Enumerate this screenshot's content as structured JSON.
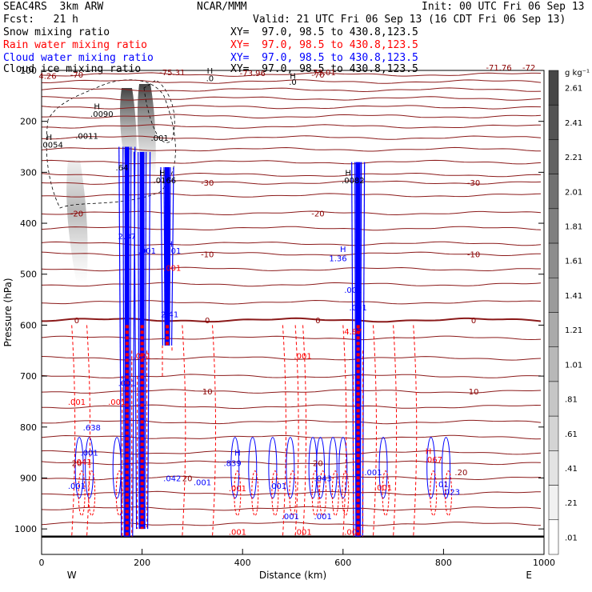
{
  "header": {
    "model": "SEAC4RS  3km ARW",
    "org": "NCAR/MMM",
    "init": "Init: 00 UTC Fri 06 Sep 13",
    "fcst": "Fcst:   21 h",
    "valid": "Valid: 21 UTC Fri 06 Sep 13 (16 CDT Fri 06 Sep 13)"
  },
  "fields": [
    {
      "name": "Snow mixing ratio",
      "xy": "XY=  97.0, 98.5 to 430.8,123.5",
      "color": "#000000"
    },
    {
      "name": "Rain water mixing ratio",
      "xy": "XY=  97.0, 98.5 to 430.8,123.5",
      "color": "#ff0000"
    },
    {
      "name": "Cloud water mixing ratio",
      "xy": "XY=  97.0, 98.5 to 430.8,123.5",
      "color": "#0000ff"
    },
    {
      "name": "Cloud ice mixing ratio",
      "xy": "XY=  97.0, 98.5 to 430.8,123.5",
      "color": "#000000"
    }
  ],
  "chart_data": {
    "type": "heatmap",
    "xlabel": "Distance (km)",
    "ylabel": "Pressure (hPa)",
    "xlim": [
      0,
      1000
    ],
    "ylim": [
      1050,
      100
    ],
    "xticks": [
      "0",
      "200",
      "400",
      "600",
      "800",
      "1000"
    ],
    "yticks": [
      "100",
      "200",
      "300",
      "400",
      "500",
      "600",
      "700",
      "800",
      "900",
      "1000"
    ],
    "ends": {
      "left": "W",
      "right": "E"
    },
    "colorbar": {
      "unit": "g kg⁻¹",
      "labels": [
        "2.61",
        "2.41",
        "2.21",
        "2.01",
        "1.81",
        "1.61",
        "1.41",
        "1.21",
        "1.01",
        ".81",
        ".61",
        ".41",
        ".21",
        ".01"
      ]
    },
    "temperature_contours": [
      {
        "label": "-70",
        "p": 108
      },
      {
        "label": "-30",
        "p": 320
      },
      {
        "label": "-20",
        "p": 380
      },
      {
        "label": "-10",
        "p": 460
      },
      {
        "label": "0",
        "p": 590
      },
      {
        "label": "10",
        "p": 730
      },
      {
        "label": "20",
        "p": 870
      }
    ],
    "annotations": [
      {
        "text": "4.26",
        "x": 12,
        "p": 110,
        "color": "#8b0000"
      },
      {
        "text": "-75.31",
        "x": 260,
        "p": 103,
        "color": "#8b0000"
      },
      {
        "text": "-73.96",
        "x": 420,
        "p": 105,
        "color": "#8b0000"
      },
      {
        "text": "-73.01",
        "x": 560,
        "p": 103,
        "color": "#8b0000"
      },
      {
        "text": "-71.76",
        "x": 910,
        "p": 94,
        "color": "#8b0000"
      },
      {
        "text": "-72",
        "x": 970,
        "p": 94,
        "color": "#8b0000"
      },
      {
        "text": "H",
        "x": 335,
        "p": 100,
        "color": "#000000"
      },
      {
        "text": ".0",
        "x": 335,
        "p": 115,
        "color": "#000000"
      },
      {
        "text": "H",
        "x": 500,
        "p": 110,
        "color": "#000000"
      },
      {
        "text": ".0",
        "x": 500,
        "p": 122,
        "color": "#000000"
      },
      {
        "text": "H",
        "x": 110,
        "p": 170,
        "color": "#000000"
      },
      {
        "text": ".0090",
        "x": 120,
        "p": 185,
        "color": "#000000"
      },
      {
        "text": ".0011",
        "x": 90,
        "p": 228,
        "color": "#000000"
      },
      {
        "text": "H",
        "x": 15,
        "p": 230,
        "color": "#000000"
      },
      {
        "text": ".0054",
        "x": 20,
        "p": 245,
        "color": "#000000"
      },
      {
        "text": ".001",
        "x": 235,
        "p": 232,
        "color": "#000000"
      },
      {
        "text": ".64",
        "x": 160,
        "p": 290,
        "color": "#000000"
      },
      {
        "text": "H",
        "x": 240,
        "p": 300,
        "color": "#000000"
      },
      {
        "text": ".0166",
        "x": 245,
        "p": 315,
        "color": "#000000"
      },
      {
        "text": "H",
        "x": 610,
        "p": 300,
        "color": "#000000"
      },
      {
        "text": ".0082",
        "x": 620,
        "p": 315,
        "color": "#000000"
      },
      {
        "text": "2.37",
        "x": 170,
        "p": 425,
        "color": "#0000ff"
      },
      {
        "text": ".001",
        "x": 210,
        "p": 453,
        "color": "#0000ff"
      },
      {
        "text": ".001",
        "x": 260,
        "p": 453,
        "color": "#0000ff"
      },
      {
        "text": "H",
        "x": 255,
        "p": 440,
        "color": "#0000ff"
      },
      {
        "text": "H",
        "x": 600,
        "p": 450,
        "color": "#0000ff"
      },
      {
        "text": "1.36",
        "x": 590,
        "p": 468,
        "color": "#0000ff"
      },
      {
        "text": ".001",
        "x": 260,
        "p": 487,
        "color": "#ff0000"
      },
      {
        "text": ".001",
        "x": 620,
        "p": 530,
        "color": "#0000ff"
      },
      {
        "text": "2.41",
        "x": 255,
        "p": 578,
        "color": "#0000ff"
      },
      {
        "text": ".001",
        "x": 630,
        "p": 565,
        "color": "#0000ff"
      },
      {
        "text": "4.87",
        "x": 620,
        "p": 612,
        "color": "#ff0000"
      },
      {
        "text": ".001",
        "x": 520,
        "p": 660,
        "color": "#ff0000"
      },
      {
        "text": ".001",
        "x": 200,
        "p": 660,
        "color": "#ff0000"
      },
      {
        "text": ".001",
        "x": 170,
        "p": 713,
        "color": "#0000ff"
      },
      {
        "text": ".001",
        "x": 70,
        "p": 750,
        "color": "#ff0000"
      },
      {
        "text": ".001",
        "x": 150,
        "p": 750,
        "color": "#ff0000"
      },
      {
        "text": ".638",
        "x": 100,
        "p": 800,
        "color": "#0000ff"
      },
      {
        "text": ".001",
        "x": 95,
        "p": 850,
        "color": "#0000ff"
      },
      {
        "text": ".041",
        "x": 82,
        "p": 868,
        "color": "#ff0000"
      },
      {
        "text": ".001",
        "x": 70,
        "p": 915,
        "color": "#0000ff"
      },
      {
        "text": "H",
        "x": 390,
        "p": 850,
        "color": "#0000ff"
      },
      {
        "text": ".839",
        "x": 380,
        "p": 870,
        "color": "#0000ff"
      },
      {
        "text": ".042",
        "x": 260,
        "p": 900,
        "color": "#0000ff"
      },
      {
        "text": "20",
        "x": 290,
        "p": 900,
        "color": "#8b0000"
      },
      {
        "text": ".001",
        "x": 320,
        "p": 908,
        "color": "#0000ff"
      },
      {
        "text": ".001",
        "x": 390,
        "p": 920,
        "color": "#ff0000"
      },
      {
        "text": ".001",
        "x": 470,
        "p": 915,
        "color": "#0000ff"
      },
      {
        "text": ".043",
        "x": 560,
        "p": 900,
        "color": "#0000ff"
      },
      {
        "text": ".001",
        "x": 660,
        "p": 888,
        "color": "#0000ff"
      },
      {
        "text": ".001",
        "x": 680,
        "p": 918,
        "color": "#ff0000"
      },
      {
        "text": "H",
        "x": 770,
        "p": 847,
        "color": "#ff0000"
      },
      {
        "text": ".067",
        "x": 780,
        "p": 863,
        "color": "#ff0000"
      },
      {
        "text": ".20",
        "x": 835,
        "p": 888,
        "color": "#8b0000"
      },
      {
        "text": "01",
        "x": 800,
        "p": 912,
        "color": "#0000ff"
      },
      {
        "text": ".023",
        "x": 815,
        "p": 927,
        "color": "#0000ff"
      },
      {
        "text": ".001",
        "x": 390,
        "p": 1005,
        "color": "#ff0000"
      },
      {
        "text": ".001",
        "x": 520,
        "p": 1005,
        "color": "#ff0000"
      },
      {
        "text": ".001",
        "x": 560,
        "p": 975,
        "color": "#0000ff"
      },
      {
        "text": ".001",
        "x": 620,
        "p": 1005,
        "color": "#ff0000"
      },
      {
        "text": ".001",
        "x": 495,
        "p": 975,
        "color": "#0000ff"
      }
    ]
  }
}
